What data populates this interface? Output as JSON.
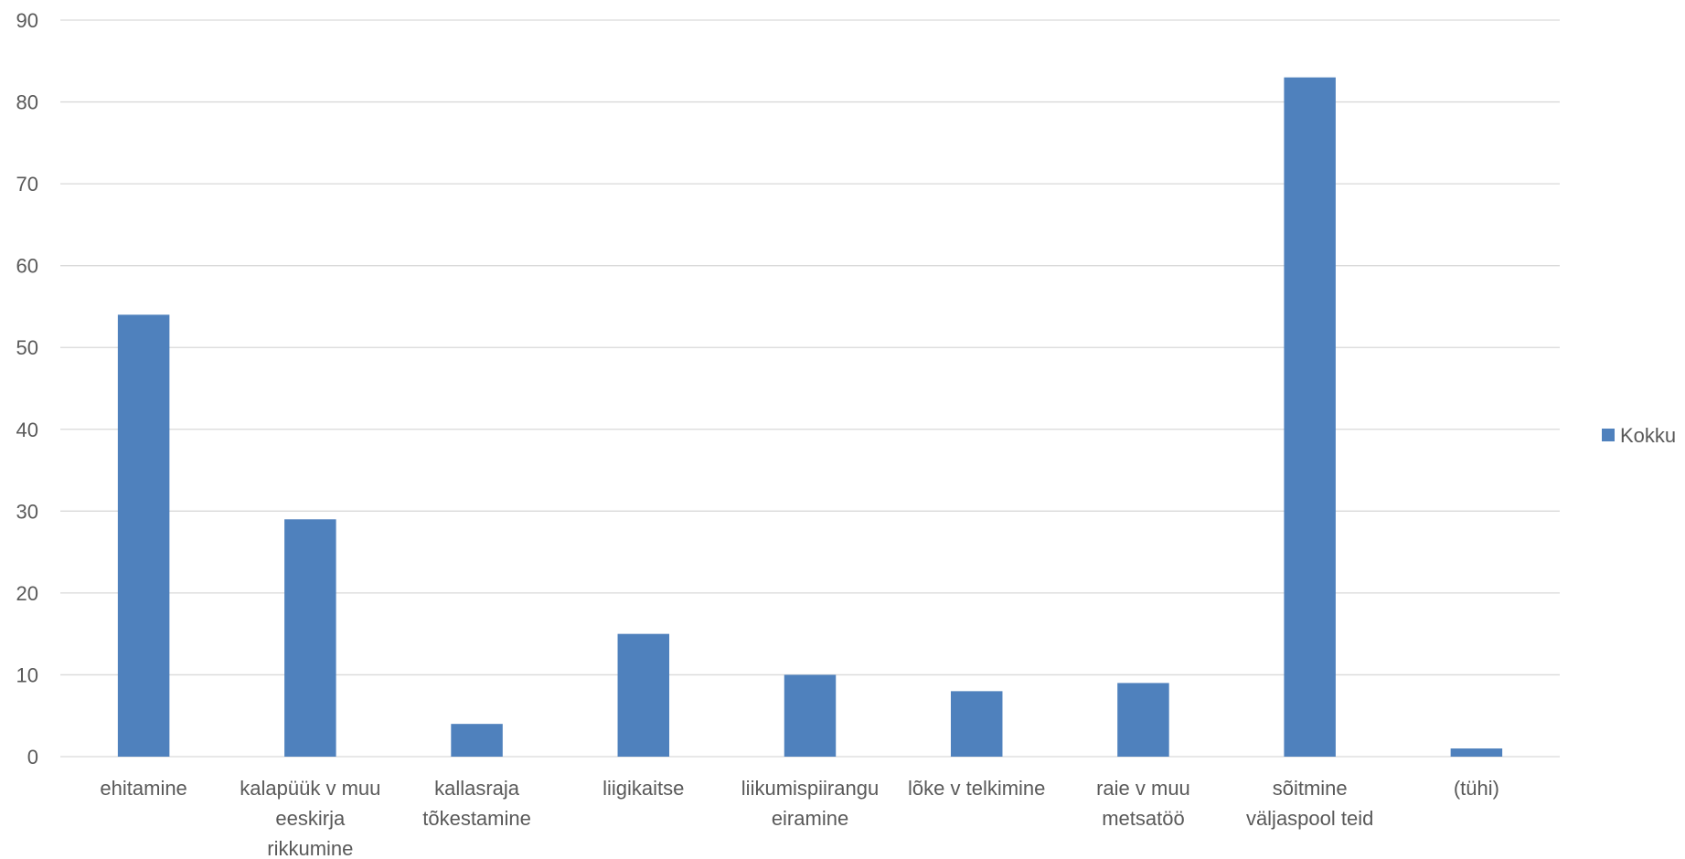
{
  "chart_data": {
    "type": "bar",
    "title": "",
    "xlabel": "",
    "ylabel": "",
    "ylim": [
      0,
      90
    ],
    "yticks": [
      0,
      10,
      20,
      30,
      40,
      50,
      60,
      70,
      80,
      90
    ],
    "grid": true,
    "legend_position": "right",
    "categories": [
      [
        "ehitamine"
      ],
      [
        "kalapüük v muu",
        "eeskirja",
        "rikkumine"
      ],
      [
        "kallasraja",
        "tõkestamine"
      ],
      [
        "liigikaitse"
      ],
      [
        "liikumispiirangu",
        "eiramine"
      ],
      [
        "lõke v telkimine"
      ],
      [
        "raie v muu",
        "metsatöö"
      ],
      [
        "sõitmine",
        "väljaspool teid"
      ],
      [
        "(tühi)"
      ]
    ],
    "series": [
      {
        "name": "Kokku",
        "color": "#4f81bd",
        "values": [
          54,
          29,
          4,
          15,
          10,
          8,
          9,
          83,
          1
        ]
      }
    ]
  },
  "colors": {
    "gridline": "#d9d9d9",
    "axis_text": "#595959",
    "bar": "#4f81bd"
  }
}
